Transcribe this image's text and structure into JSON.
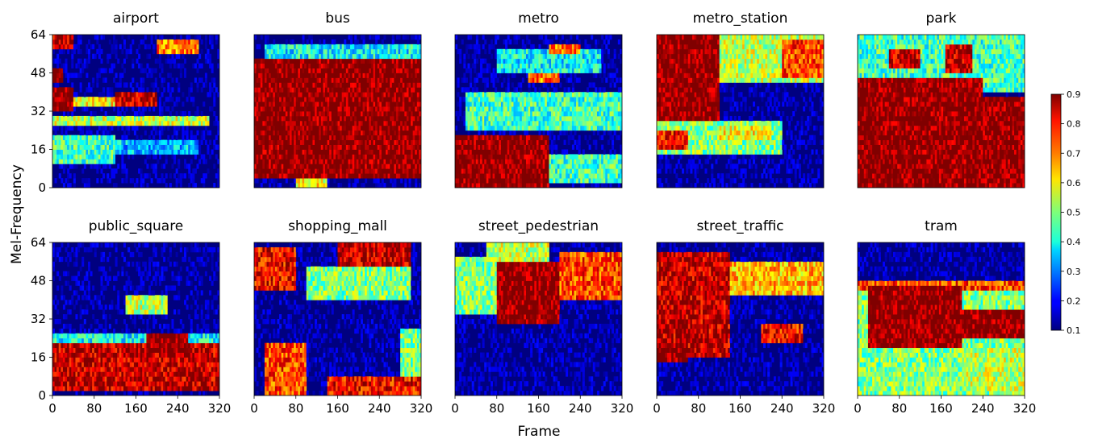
{
  "chart_data": {
    "type": "heatmap",
    "grid": "2x5 small multiples",
    "xlabel": "Frame",
    "ylabel": "Mel-Frequency",
    "xlim": [
      0,
      320
    ],
    "ylim": [
      0,
      64
    ],
    "xticks": [
      0,
      80,
      160,
      240,
      320
    ],
    "yticks": [
      0,
      16,
      32,
      48,
      64
    ],
    "colorbar": {
      "colormap": "jet",
      "range": [
        0.1,
        0.9
      ],
      "ticks": [
        0.1,
        0.2,
        0.3,
        0.4,
        0.5,
        0.6,
        0.7,
        0.8,
        0.9
      ],
      "placement": "right"
    },
    "panels": [
      {
        "title": "airport",
        "regions": [
          {
            "x": [
              0,
              40
            ],
            "y": [
              58,
              64
            ],
            "v": 0.85
          },
          {
            "x": [
              200,
              280
            ],
            "y": [
              56,
              62
            ],
            "v": 0.7
          },
          {
            "x": [
              0,
              20
            ],
            "y": [
              44,
              50
            ],
            "v": 0.9
          },
          {
            "x": [
              0,
              40
            ],
            "y": [
              32,
              42
            ],
            "v": 0.9
          },
          {
            "x": [
              120,
              200
            ],
            "y": [
              34,
              40
            ],
            "v": 0.85
          },
          {
            "x": [
              40,
              140
            ],
            "y": [
              34,
              38
            ],
            "v": 0.6
          },
          {
            "x": [
              0,
              300
            ],
            "y": [
              26,
              30
            ],
            "v": 0.55
          },
          {
            "x": [
              0,
              120
            ],
            "y": [
              10,
              22
            ],
            "v": 0.45
          },
          {
            "x": [
              120,
              280
            ],
            "y": [
              14,
              20
            ],
            "v": 0.35
          }
        ]
      },
      {
        "title": "bus",
        "regions": [
          {
            "x": [
              0,
              320
            ],
            "y": [
              4,
              54
            ],
            "v": 0.9
          },
          {
            "x": [
              20,
              320
            ],
            "y": [
              54,
              60
            ],
            "v": 0.4
          },
          {
            "x": [
              80,
              140
            ],
            "y": [
              0,
              6
            ],
            "v": 0.6
          }
        ]
      },
      {
        "title": "metro",
        "regions": [
          {
            "x": [
              0,
              180
            ],
            "y": [
              0,
              22
            ],
            "v": 0.9
          },
          {
            "x": [
              180,
              320
            ],
            "y": [
              2,
              14
            ],
            "v": 0.45
          },
          {
            "x": [
              20,
              320
            ],
            "y": [
              24,
              40
            ],
            "v": 0.45
          },
          {
            "x": [
              80,
              280
            ],
            "y": [
              48,
              58
            ],
            "v": 0.4
          },
          {
            "x": [
              180,
              240
            ],
            "y": [
              56,
              60
            ],
            "v": 0.7
          },
          {
            "x": [
              140,
              200
            ],
            "y": [
              44,
              48
            ],
            "v": 0.7
          }
        ]
      },
      {
        "title": "metro_station",
        "regions": [
          {
            "x": [
              0,
              120
            ],
            "y": [
              28,
              64
            ],
            "v": 0.9
          },
          {
            "x": [
              120,
              320
            ],
            "y": [
              44,
              64
            ],
            "v": 0.55
          },
          {
            "x": [
              240,
              320
            ],
            "y": [
              46,
              62
            ],
            "v": 0.75
          },
          {
            "x": [
              0,
              240
            ],
            "y": [
              14,
              28
            ],
            "v": 0.5
          },
          {
            "x": [
              0,
              60
            ],
            "y": [
              16,
              24
            ],
            "v": 0.8
          },
          {
            "x": [
              120,
              220
            ],
            "y": [
              20,
              26
            ],
            "v": 0.6
          }
        ]
      },
      {
        "title": "park",
        "regions": [
          {
            "x": [
              0,
              320
            ],
            "y": [
              0,
              38
            ],
            "v": 0.9
          },
          {
            "x": [
              0,
              240
            ],
            "y": [
              38,
              46
            ],
            "v": 0.9
          },
          {
            "x": [
              0,
              320
            ],
            "y": [
              40,
              64
            ],
            "v": 0.45
          },
          {
            "x": [
              60,
              120
            ],
            "y": [
              50,
              58
            ],
            "v": 0.85
          },
          {
            "x": [
              170,
              220
            ],
            "y": [
              48,
              60
            ],
            "v": 0.85
          }
        ]
      },
      {
        "title": "public_square",
        "regions": [
          {
            "x": [
              0,
              320
            ],
            "y": [
              2,
              22
            ],
            "v": 0.85
          },
          {
            "x": [
              180,
              260
            ],
            "y": [
              18,
              26
            ],
            "v": 0.9
          },
          {
            "x": [
              140,
              220
            ],
            "y": [
              34,
              42
            ],
            "v": 0.55
          },
          {
            "x": [
              0,
              320
            ],
            "y": [
              22,
              26
            ],
            "v": 0.4
          }
        ]
      },
      {
        "title": "shopping_mall",
        "regions": [
          {
            "x": [
              0,
              80
            ],
            "y": [
              44,
              62
            ],
            "v": 0.8
          },
          {
            "x": [
              160,
              300
            ],
            "y": [
              54,
              64
            ],
            "v": 0.85
          },
          {
            "x": [
              100,
              300
            ],
            "y": [
              40,
              54
            ],
            "v": 0.5
          },
          {
            "x": [
              20,
              100
            ],
            "y": [
              0,
              22
            ],
            "v": 0.75
          },
          {
            "x": [
              140,
              320
            ],
            "y": [
              0,
              8
            ],
            "v": 0.8
          },
          {
            "x": [
              280,
              320
            ],
            "y": [
              8,
              28
            ],
            "v": 0.5
          }
        ]
      },
      {
        "title": "street_pedestrian",
        "regions": [
          {
            "x": [
              80,
              200
            ],
            "y": [
              30,
              56
            ],
            "v": 0.9
          },
          {
            "x": [
              0,
              80
            ],
            "y": [
              34,
              58
            ],
            "v": 0.5
          },
          {
            "x": [
              200,
              320
            ],
            "y": [
              40,
              60
            ],
            "v": 0.75
          },
          {
            "x": [
              60,
              180
            ],
            "y": [
              56,
              64
            ],
            "v": 0.55
          }
        ]
      },
      {
        "title": "street_traffic",
        "regions": [
          {
            "x": [
              0,
              140
            ],
            "y": [
              16,
              60
            ],
            "v": 0.85
          },
          {
            "x": [
              140,
              320
            ],
            "y": [
              42,
              56
            ],
            "v": 0.65
          },
          {
            "x": [
              200,
              280
            ],
            "y": [
              22,
              30
            ],
            "v": 0.8
          },
          {
            "x": [
              0,
              60
            ],
            "y": [
              14,
              22
            ],
            "v": 0.9
          }
        ]
      },
      {
        "title": "tram",
        "regions": [
          {
            "x": [
              0,
              320
            ],
            "y": [
              0,
              48
            ],
            "v": 0.5
          },
          {
            "x": [
              20,
              200
            ],
            "y": [
              20,
              46
            ],
            "v": 0.9
          },
          {
            "x": [
              200,
              320
            ],
            "y": [
              24,
              36
            ],
            "v": 0.9
          },
          {
            "x": [
              0,
              320
            ],
            "y": [
              44,
              48
            ],
            "v": 0.75
          },
          {
            "x": [
              200,
              320
            ],
            "y": [
              2,
              20
            ],
            "v": 0.55
          }
        ]
      }
    ]
  }
}
